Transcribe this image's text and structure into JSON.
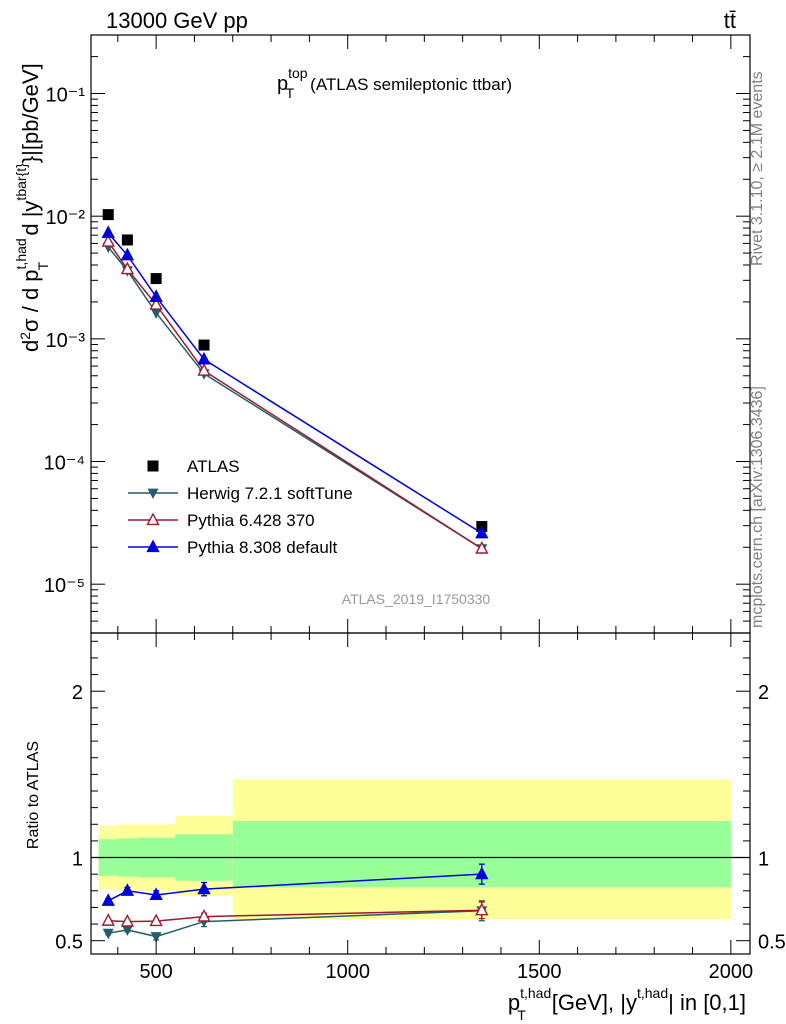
{
  "header": {
    "energy_label": "13000 GeV pp",
    "process_label": "tt̄"
  },
  "side": {
    "rivet_label": "Rivet 3.1.10, ≥ 2.1M events",
    "mcplots_label": "mcplots.cern.ch [arXiv:1306.3436]"
  },
  "chart_data": [
    {
      "type": "scatter",
      "panel": "main",
      "title_main": "p",
      "title_sup": "top",
      "title_sub": "T",
      "title_rest": "(ATLAS semileptonic ttbar)",
      "analysis_label": "ATLAS_2019_I1750330",
      "ylabel": "d²σ / d p_T^{t,had} d |y^{tbar{t}}|[pb/GeV]",
      "yscale": "log",
      "ylim": [
        4e-06,
        0.3
      ],
      "xlim": [
        330,
        2050
      ],
      "ytick_labels": [
        "10⁻⁵",
        "10⁻⁴",
        "10⁻³",
        "10⁻²",
        "10⁻¹"
      ],
      "legend_position": "lower-left",
      "x": [
        375,
        425,
        500,
        625,
        1350
      ],
      "series": [
        {
          "name": "ATLAS",
          "color": "#000000",
          "marker": "square",
          "line": false,
          "values": [
            0.0103,
            0.0064,
            0.0031,
            0.00089,
            2.95e-05
          ]
        },
        {
          "name": "Herwig 7.2.1 softTune",
          "color": "#225e6b",
          "marker": "triangle-down",
          "line": true,
          "values": [
            0.0056,
            0.0036,
            0.00163,
            0.00052,
            1.95e-05
          ]
        },
        {
          "name": "Pythia 6.428 370",
          "color": "#9b1b30",
          "marker": "triangle-open",
          "line": true,
          "values": [
            0.0062,
            0.0037,
            0.0019,
            0.00055,
            1.95e-05
          ]
        },
        {
          "name": "Pythia 8.308 default",
          "color": "#0000dd",
          "marker": "triangle",
          "line": true,
          "values": [
            0.0073,
            0.0048,
            0.0022,
            0.00068,
            2.6e-05
          ]
        }
      ]
    },
    {
      "type": "scatter",
      "panel": "ratio",
      "ylabel": "Ratio to ATLAS",
      "xlabel_main": "p",
      "xlabel_sup": "t,had",
      "xlabel_sub": "T",
      "xlabel_rest": "[GeV], |y",
      "xlabel_sup2": "t,had",
      "xlabel_tail": "| in [0,1]",
      "ylim": [
        0.42,
        2.35
      ],
      "xlim": [
        330,
        2050
      ],
      "ytick_labels": [
        "0.5",
        "1",
        "2"
      ],
      "xtick_labels": [
        "500",
        "1000",
        "1500",
        "2000"
      ],
      "uncertainty_bands": [
        {
          "x_range": [
            350,
            400
          ],
          "inner": [
            0.89,
            1.11
          ],
          "outer": [
            0.81,
            1.19
          ]
        },
        {
          "x_range": [
            400,
            450
          ],
          "inner": [
            0.885,
            1.115
          ],
          "outer": [
            0.8,
            1.2
          ]
        },
        {
          "x_range": [
            450,
            550
          ],
          "inner": [
            0.88,
            1.12
          ],
          "outer": [
            0.8,
            1.2
          ]
        },
        {
          "x_range": [
            550,
            700
          ],
          "inner": [
            0.86,
            1.14
          ],
          "outer": [
            0.77,
            1.25
          ]
        },
        {
          "x_range": [
            700,
            2000
          ],
          "inner": [
            0.82,
            1.22
          ],
          "outer": [
            0.63,
            1.47
          ]
        }
      ],
      "x": [
        375,
        425,
        500,
        625,
        1350
      ],
      "series": [
        {
          "name": "Herwig 7.2.1 softTune",
          "color": "#225e6b",
          "marker": "triangle-down",
          "values": [
            0.545,
            0.565,
            0.525,
            0.615,
            0.68
          ],
          "errors": [
            0.01,
            0.012,
            0.02,
            0.03,
            0.06
          ]
        },
        {
          "name": "Pythia 6.428 370",
          "color": "#9b1b30",
          "marker": "triangle-open",
          "values": [
            0.62,
            0.615,
            0.618,
            0.645,
            0.683
          ],
          "errors": [
            0.01,
            0.01,
            0.01,
            0.02,
            0.05
          ]
        },
        {
          "name": "Pythia 8.308 default",
          "color": "#0000dd",
          "marker": "triangle",
          "values": [
            0.74,
            0.8,
            0.775,
            0.81,
            0.9
          ],
          "errors": [
            0.012,
            0.02,
            0.025,
            0.04,
            0.06
          ]
        }
      ]
    }
  ]
}
